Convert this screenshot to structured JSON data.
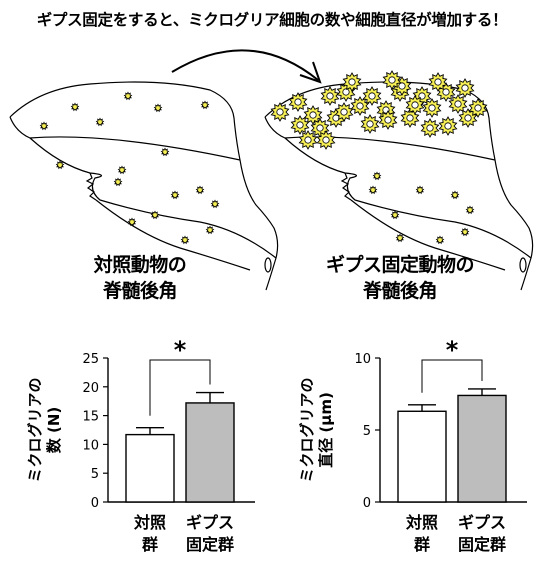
{
  "headline": "ギプス固定をすると、ミクログリア細胞の数や細胞直径が増加する！",
  "panels": {
    "control": {
      "caption_line1": "対照動物の",
      "caption_line2": "脊髄後角"
    },
    "cast": {
      "caption_line1": "ギプス固定動物の",
      "caption_line2": "脊髄後角"
    }
  },
  "colors": {
    "microglia_fill": "#f5ee55",
    "control_bar": "#ffffff",
    "cast_bar": "#bdbdbd",
    "line": "#000000"
  },
  "icons": {
    "transition_arrow": "curved-arrow-right",
    "microglia": "star-burst"
  },
  "chart_data": [
    {
      "type": "bar",
      "ylabel_line1": "ミクログリアの",
      "ylabel_line2": "数 (N)",
      "categories": [
        {
          "line1": "対照",
          "line2": "群"
        },
        {
          "line1": "ギプス",
          "line2": "固定群"
        }
      ],
      "values": [
        11.7,
        17.2
      ],
      "errors": [
        1.2,
        1.8
      ],
      "ylim": [
        0,
        25
      ],
      "yticks": [
        "0",
        "5",
        "10",
        "15",
        "20",
        "25"
      ],
      "significance": "*"
    },
    {
      "type": "bar",
      "ylabel_line1": "ミクログリアの",
      "ylabel_line2": "直径 (μm)",
      "categories": [
        {
          "line1": "対照",
          "line2": "群"
        },
        {
          "line1": "ギプス",
          "line2": "固定群"
        }
      ],
      "values": [
        6.3,
        7.4
      ],
      "errors": [
        0.45,
        0.45
      ],
      "ylim": [
        0,
        10
      ],
      "yticks": [
        "0",
        "5",
        "10"
      ],
      "significance": "*"
    }
  ]
}
